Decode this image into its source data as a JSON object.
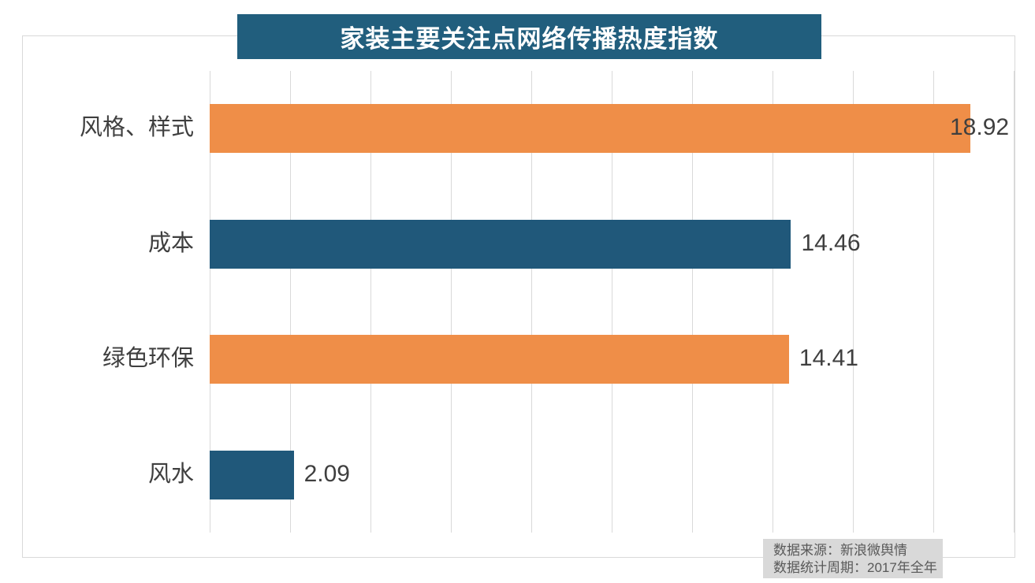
{
  "chart_data": {
    "type": "bar",
    "orientation": "horizontal",
    "title": "家装主要关注点网络传播热度指数",
    "categories": [
      "风格、样式",
      "成本",
      "绿色环保",
      "风水"
    ],
    "values": [
      18.92,
      14.46,
      14.41,
      2.09
    ],
    "value_labels": [
      "18.92",
      "14.46",
      "14.41",
      "2.09"
    ],
    "bar_colors": [
      "#EF8E48",
      "#20587A",
      "#EF8E48",
      "#20587A"
    ],
    "xlim": [
      0,
      20
    ],
    "grid_step": 2,
    "grid": true,
    "legend": false,
    "xlabel": "",
    "ylabel": ""
  },
  "footer": {
    "source_line1": "数据来源：新浪微舆情",
    "source_line2": "数据统计周期：2017年全年"
  },
  "colors": {
    "title_bg": "#215E7D",
    "title_text": "#ffffff",
    "bar_orange": "#EF8E48",
    "bar_teal": "#20587A",
    "gridline": "#d9d9d9",
    "chart_border": "#d9d9d9",
    "label_text": "#3f3f3f",
    "source_bg": "#d9d9d9",
    "source_text": "#595959"
  }
}
